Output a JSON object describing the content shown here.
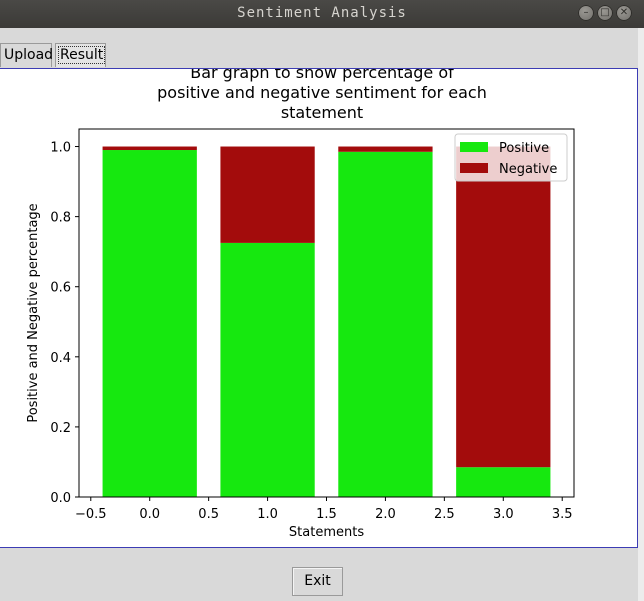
{
  "window": {
    "title": "Sentiment Analysis",
    "controls": {
      "minimize": "–",
      "maximize": "□",
      "close": "✕"
    }
  },
  "tabs": [
    {
      "label": "Upload",
      "selected": false
    },
    {
      "label": "Result",
      "selected": true
    }
  ],
  "exit_button": {
    "label": "Exit"
  },
  "chart_data": {
    "type": "bar",
    "stacked": true,
    "title_lines": [
      "Bar graph to show percentage of",
      "positive and negative sentiment for each",
      "statement"
    ],
    "xlabel": "Statements",
    "ylabel": "Positive and Negative percentage",
    "x": [
      0,
      1,
      2,
      3
    ],
    "series": [
      {
        "name": "Positive",
        "color": "#16e80f",
        "values": [
          0.99,
          0.725,
          0.985,
          0.085
        ]
      },
      {
        "name": "Negative",
        "color": "#a30c0c",
        "values": [
          0.01,
          0.275,
          0.015,
          0.915
        ]
      }
    ],
    "xlim": [
      -0.6,
      3.6
    ],
    "ylim": [
      0,
      1.05
    ],
    "xticks": [
      -0.5,
      0.0,
      0.5,
      1.0,
      1.5,
      2.0,
      2.5,
      3.0,
      3.5
    ],
    "xtick_labels": [
      "−0.5",
      "0.0",
      "0.5",
      "1.0",
      "1.5",
      "2.0",
      "2.5",
      "3.0",
      "3.5"
    ],
    "yticks": [
      0.0,
      0.2,
      0.4,
      0.6,
      0.8,
      1.0
    ],
    "ytick_labels": [
      "0.0",
      "0.2",
      "0.4",
      "0.6",
      "0.8",
      "1.0"
    ],
    "bar_width": 0.8,
    "grid": false,
    "legend_position": "top-right"
  }
}
